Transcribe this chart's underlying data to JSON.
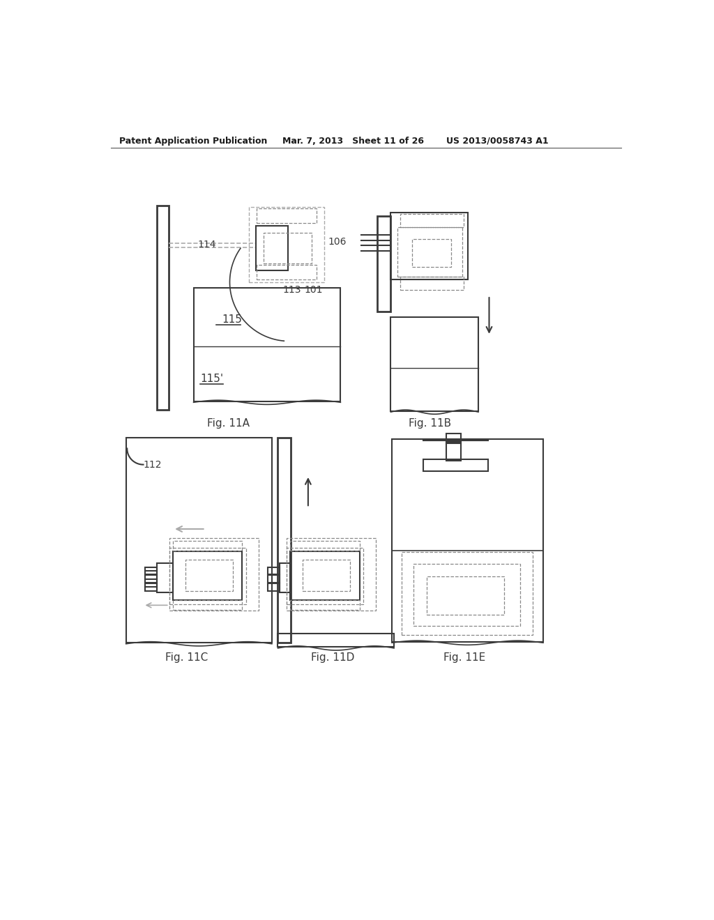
{
  "bg_color": "#ffffff",
  "line_color": "#3a3a3a",
  "dashed_color": "#888888",
  "light_color": "#aaaaaa",
  "header": {
    "left": "Patent Application Publication",
    "center": "Mar. 7, 2013   Sheet 11 of 26",
    "right": "US 2013/0058743 A1"
  },
  "fig_labels": [
    "Fig. 11A",
    "Fig. 11B",
    "Fig. 11C",
    "Fig. 11D",
    "Fig. 11E"
  ]
}
